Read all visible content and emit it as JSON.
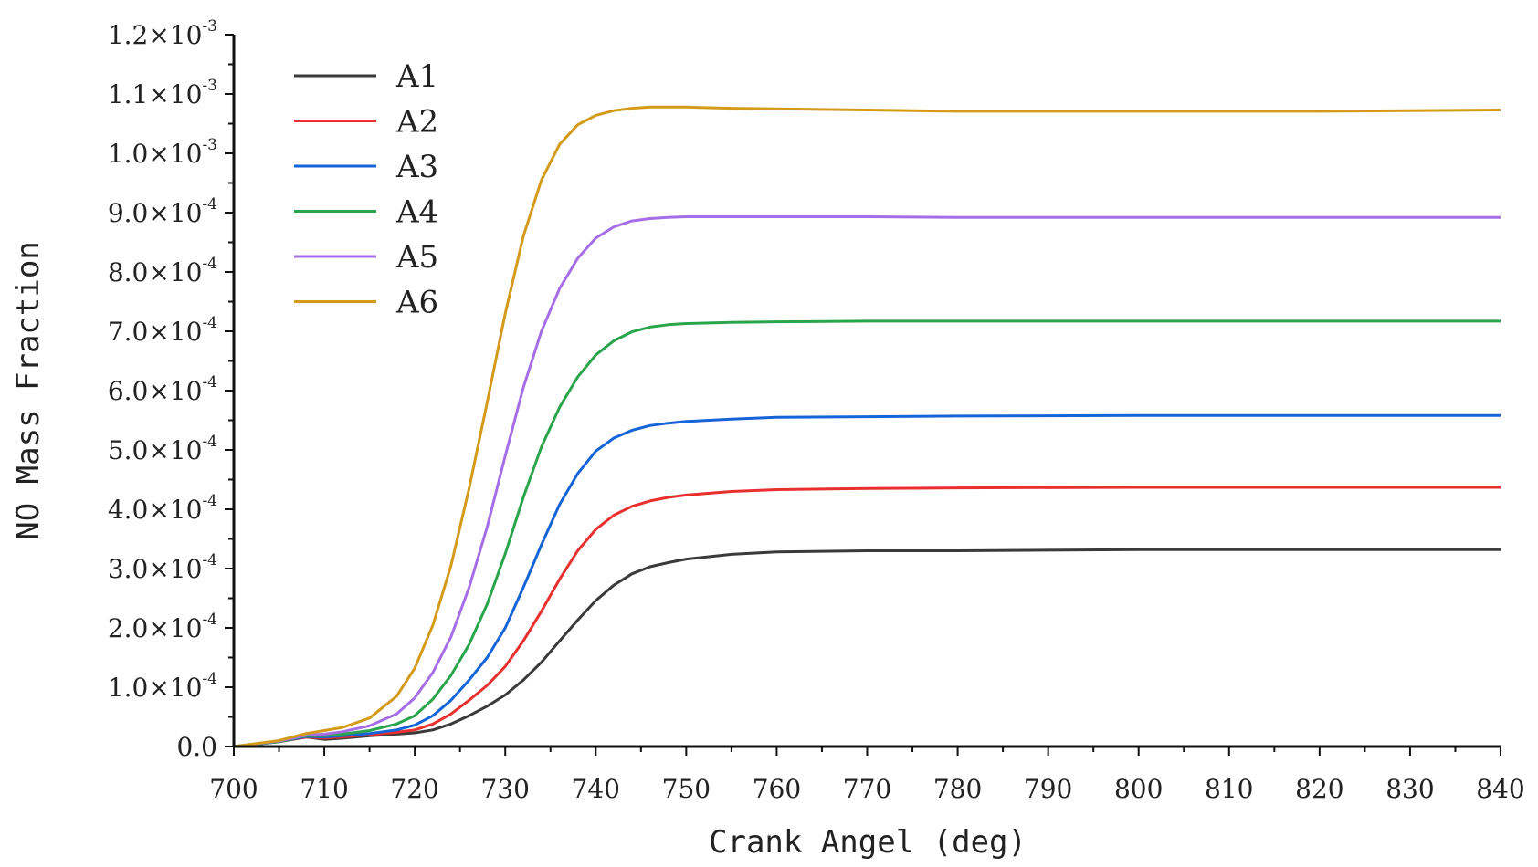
{
  "chart_data": {
    "type": "line",
    "title": "",
    "xlabel": "Crank Angel (deg)",
    "ylabel": "NO Mass Fraction",
    "xlim": [
      700,
      840
    ],
    "ylim": [
      0,
      0.0012
    ],
    "xticks": [
      700,
      710,
      720,
      730,
      740,
      750,
      760,
      770,
      780,
      790,
      800,
      810,
      820,
      830,
      840
    ],
    "yticks": [
      {
        "value": 0.0,
        "mantissa": "0.0",
        "exp": ""
      },
      {
        "value": 0.0001,
        "mantissa": "1.0",
        "exp": "-4"
      },
      {
        "value": 0.0002,
        "mantissa": "2.0",
        "exp": "-4"
      },
      {
        "value": 0.0003,
        "mantissa": "3.0",
        "exp": "-4"
      },
      {
        "value": 0.0004,
        "mantissa": "4.0",
        "exp": "-4"
      },
      {
        "value": 0.0005,
        "mantissa": "5.0",
        "exp": "-4"
      },
      {
        "value": 0.0006,
        "mantissa": "6.0",
        "exp": "-4"
      },
      {
        "value": 0.0007,
        "mantissa": "7.0",
        "exp": "-4"
      },
      {
        "value": 0.0008,
        "mantissa": "8.0",
        "exp": "-4"
      },
      {
        "value": 0.0009,
        "mantissa": "9.0",
        "exp": "-4"
      },
      {
        "value": 0.001,
        "mantissa": "1.0",
        "exp": "-3"
      },
      {
        "value": 0.0011,
        "mantissa": "1.1",
        "exp": "-3"
      },
      {
        "value": 0.0012,
        "mantissa": "1.2",
        "exp": "-3"
      }
    ],
    "times_symbol": "×10",
    "legend_position": "top-left",
    "x": [
      700,
      705,
      708,
      710,
      712,
      715,
      718,
      720,
      722,
      724,
      726,
      728,
      730,
      732,
      734,
      736,
      738,
      740,
      742,
      744,
      746,
      748,
      750,
      755,
      760,
      770,
      780,
      800,
      820,
      840
    ],
    "series": [
      {
        "name": "A1",
        "color": "#3a3a3a",
        "values": [
          0,
          8e-06,
          1.6e-05,
          1.2e-05,
          1.4e-05,
          1.8e-05,
          2.1e-05,
          2.3e-05,
          2.8e-05,
          3.8e-05,
          5.2e-05,
          6.8e-05,
          8.7e-05,
          0.000112,
          0.000142,
          0.000178,
          0.000213,
          0.000246,
          0.000272,
          0.000291,
          0.000303,
          0.00031,
          0.000316,
          0.000324,
          0.000328,
          0.00033,
          0.00033,
          0.000332,
          0.000332,
          0.000332
        ]
      },
      {
        "name": "A2",
        "color": "#e8302e",
        "values": [
          0,
          8e-06,
          1.6e-05,
          1.4e-05,
          1.6e-05,
          2e-05,
          2.4e-05,
          2.8e-05,
          3.8e-05,
          5.5e-05,
          7.8e-05,
          0.000103,
          0.000135,
          0.000178,
          0.000228,
          0.000282,
          0.00033,
          0.000366,
          0.00039,
          0.000405,
          0.000414,
          0.00042,
          0.000424,
          0.00043,
          0.000433,
          0.000435,
          0.000436,
          0.000437,
          0.000437,
          0.000437
        ]
      },
      {
        "name": "A3",
        "color": "#1565d8",
        "values": [
          0,
          8e-06,
          1.7e-05,
          1.6e-05,
          1.8e-05,
          2.2e-05,
          2.8e-05,
          3.6e-05,
          5.2e-05,
          7.8e-05,
          0.000112,
          0.00015,
          0.0002,
          0.000268,
          0.00034,
          0.000408,
          0.00046,
          0.000498,
          0.00052,
          0.000533,
          0.000541,
          0.000545,
          0.000548,
          0.000552,
          0.000555,
          0.000556,
          0.000557,
          0.000558,
          0.000558,
          0.000558
        ]
      },
      {
        "name": "A4",
        "color": "#2aa54b",
        "values": [
          0,
          8e-06,
          1.8e-05,
          1.8e-05,
          2.1e-05,
          2.7e-05,
          3.8e-05,
          5.2e-05,
          8e-05,
          0.00012,
          0.000172,
          0.00024,
          0.000325,
          0.00042,
          0.000505,
          0.000572,
          0.000623,
          0.00066,
          0.000684,
          0.000699,
          0.000707,
          0.000711,
          0.000713,
          0.000715,
          0.000716,
          0.000717,
          0.000717,
          0.000717,
          0.000717,
          0.000717
        ]
      },
      {
        "name": "A5",
        "color": "#a66ee6",
        "values": [
          0,
          9e-06,
          1.9e-05,
          2.1e-05,
          2.5e-05,
          3.5e-05,
          5.5e-05,
          8.2e-05,
          0.000125,
          0.000185,
          0.000268,
          0.00037,
          0.00049,
          0.000605,
          0.0007,
          0.000772,
          0.000823,
          0.000857,
          0.000876,
          0.000886,
          0.00089,
          0.000892,
          0.000893,
          0.000893,
          0.000893,
          0.000893,
          0.000892,
          0.000892,
          0.000892,
          0.000892
        ]
      },
      {
        "name": "A6",
        "color": "#d49a1a",
        "values": [
          0,
          1e-05,
          2.2e-05,
          2.7e-05,
          3.2e-05,
          4.8e-05,
          8.5e-05,
          0.000132,
          0.000205,
          0.000305,
          0.000435,
          0.00058,
          0.00073,
          0.00086,
          0.000955,
          0.001015,
          0.001048,
          0.001064,
          0.001072,
          0.001076,
          0.001078,
          0.001078,
          0.001078,
          0.001076,
          0.001075,
          0.001073,
          0.001071,
          0.001071,
          0.001071,
          0.001073
        ]
      }
    ]
  }
}
